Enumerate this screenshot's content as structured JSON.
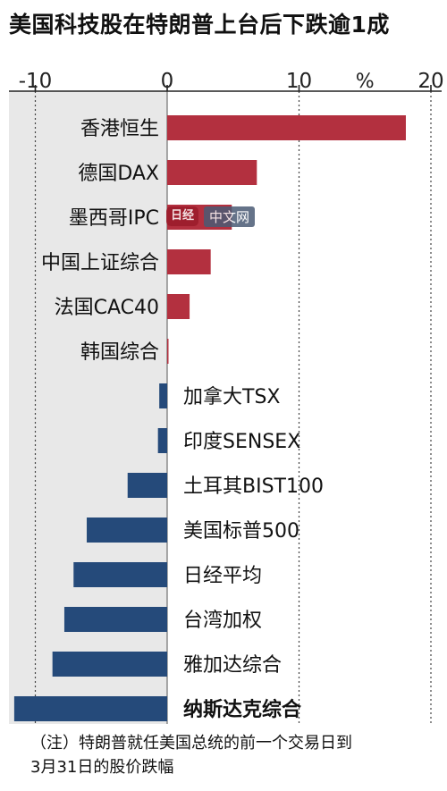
{
  "title": "美国科技股在特朗普上台后下跌逾1成",
  "note": {
    "line1": "（注）特朗普就任美国总统的前一个交易日到",
    "line2": "3月31日的股价跌幅"
  },
  "watermark": {
    "badge": "日经",
    "text": "中文网"
  },
  "colors": {
    "positive": "#b3303f",
    "negative": "#254a7a",
    "shade": "#e8e8e8",
    "grid": "#444444"
  },
  "chart_data": {
    "type": "bar",
    "orientation": "horizontal",
    "unit": "%",
    "xlim": [
      -12,
      20
    ],
    "xticks": [
      -10,
      0,
      10,
      20
    ],
    "xtick_labels": [
      "-10",
      "0",
      "10",
      "20"
    ],
    "categories": [
      "香港恒生",
      "德国DAX",
      "墨西哥IPC",
      "中国上证综合",
      "法国CAC40",
      "韩国综合",
      "加拿大TSX",
      "印度SENSEX",
      "土耳其BIST100",
      "美国标普500",
      "日经平均",
      "台湾加权",
      "雅加达综合",
      "纳斯达克综合"
    ],
    "values": [
      18.1,
      6.8,
      4.9,
      3.3,
      1.7,
      0.1,
      -0.6,
      -0.7,
      -3.0,
      -6.1,
      -7.1,
      -7.8,
      -8.7,
      -11.6
    ],
    "highlight": "纳斯达克综合",
    "grid": true
  }
}
